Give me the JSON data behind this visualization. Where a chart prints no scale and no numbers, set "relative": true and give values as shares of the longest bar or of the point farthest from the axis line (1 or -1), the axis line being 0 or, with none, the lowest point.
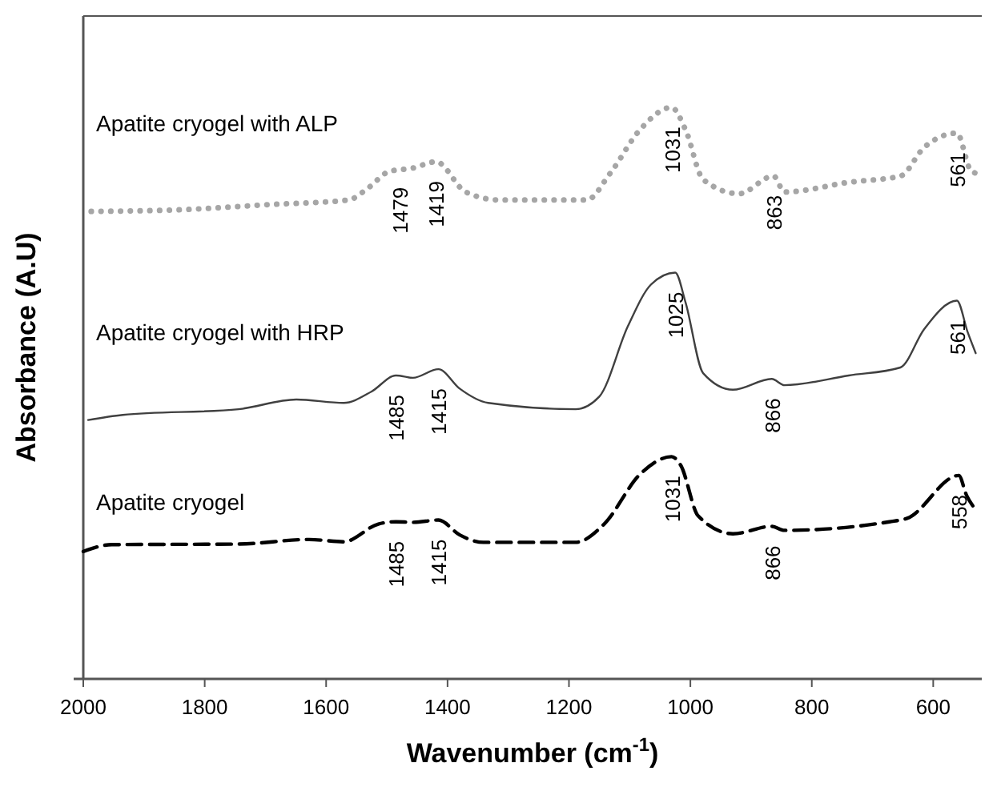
{
  "chart_data": {
    "type": "line",
    "relative": true,
    "xlabel": "Wavenumber (cm$^{-1}$)",
    "ylabel": "Absorbance (A.U)",
    "xlim": [
      2000,
      520
    ],
    "xticks": [
      2000,
      1800,
      1600,
      1400,
      1200,
      1000,
      800,
      600
    ],
    "grid": false,
    "marker": "none",
    "series": [
      {
        "name": "Apatite cryogel with ALP",
        "color": "#a6a6a6",
        "line_style": "dotted",
        "x": [
          1987,
          1840,
          1695,
          1563,
          1532,
          1496,
          1457,
          1419,
          1370,
          1313,
          1171,
          1132,
          1083,
          1031,
          1008,
          979,
          920,
          863,
          845,
          739,
          654,
          615,
          561,
          537,
          520
        ],
        "values": [
          0.818,
          0.821,
          0.83,
          0.838,
          0.858,
          0.888,
          0.894,
          0.905,
          0.852,
          0.838,
          0.838,
          0.885,
          0.961,
          1.0,
          0.961,
          0.874,
          0.849,
          0.88,
          0.852,
          0.869,
          0.88,
          0.93,
          0.955,
          0.888,
          0.883
        ]
      },
      {
        "name": "Apatite cryogel with HRP",
        "color": "#404040",
        "line_style": "solid",
        "x": [
          1992,
          1935,
          1744,
          1649,
          1571,
          1525,
          1485,
          1457,
          1415,
          1380,
          1333,
          1189,
          1150,
          1103,
          1065,
          1025,
          1008,
          979,
          930,
          866,
          845,
          739,
          654,
          615,
          561,
          543,
          530
        ],
        "values": [
          0.453,
          0.462,
          0.472,
          0.489,
          0.483,
          0.503,
          0.531,
          0.527,
          0.542,
          0.508,
          0.483,
          0.472,
          0.494,
          0.617,
          0.69,
          0.711,
          0.659,
          0.535,
          0.506,
          0.525,
          0.514,
          0.531,
          0.545,
          0.612,
          0.662,
          0.606,
          0.57
        ]
      },
      {
        "name": "Apatite cryogel",
        "color": "#000000",
        "line_style": "dashed",
        "x": [
          2000,
          1953,
          1744,
          1628,
          1571,
          1514,
          1485,
          1457,
          1415,
          1380,
          1341,
          1189,
          1142,
          1083,
          1031,
          1016,
          987,
          930,
          866,
          845,
          672,
          643,
          558,
          545,
          530
        ],
        "values": [
          0.223,
          0.235,
          0.236,
          0.244,
          0.24,
          0.271,
          0.275,
          0.274,
          0.278,
          0.252,
          0.239,
          0.239,
          0.271,
          0.358,
          0.389,
          0.374,
          0.285,
          0.254,
          0.267,
          0.26,
          0.275,
          0.281,
          0.356,
          0.321,
          0.296
        ]
      }
    ],
    "annotations": [
      {
        "text": "1479",
        "x": 1479,
        "y": 0.894
      },
      {
        "text": "1419",
        "x": 1419,
        "y": 0.905
      },
      {
        "text": "1031",
        "x": 1031,
        "y": 1.0
      },
      {
        "text": "863",
        "x": 863,
        "y": 0.88
      },
      {
        "text": "561",
        "x": 561,
        "y": 0.955
      },
      {
        "text": "1485",
        "x": 1485,
        "y": 0.531
      },
      {
        "text": "1415",
        "x": 1415,
        "y": 0.542
      },
      {
        "text": "1025",
        "x": 1025,
        "y": 0.711
      },
      {
        "text": "866",
        "x": 866,
        "y": 0.525
      },
      {
        "text": "561",
        "x": 561,
        "y": 0.662
      },
      {
        "text": "1485",
        "x": 1485,
        "y": 0.275
      },
      {
        "text": "1415",
        "x": 1415,
        "y": 0.278
      },
      {
        "text": "1031",
        "x": 1031,
        "y": 0.389
      },
      {
        "text": "866",
        "x": 866,
        "y": 0.267
      },
      {
        "text": "558",
        "x": 558,
        "y": 0.356
      }
    ]
  }
}
